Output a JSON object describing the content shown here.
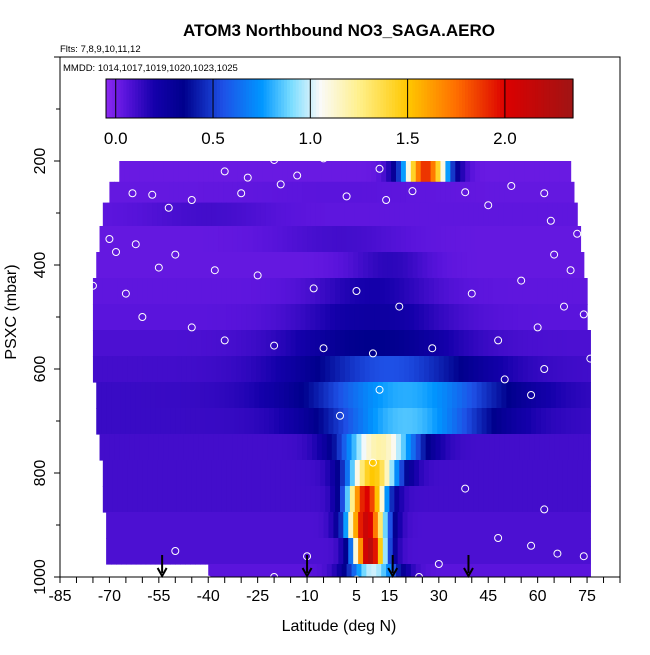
{
  "chart_data": {
    "type": "heatmap",
    "title": "ATOM3 Northbound NO3_SAGA.AERO",
    "flights_note": "Flts: 7,8,9,10,11,12",
    "mmdd_note": "MMDD: 1014,1017,1019,1020,1023,1025",
    "xlabel": "Latitude (deg N)",
    "ylabel": "PSXC (mbar)",
    "xlim": [
      -85,
      85
    ],
    "ylim": [
      1000,
      0
    ],
    "x_ticks": [
      "-85",
      "-70",
      "-55",
      "-40",
      "-25",
      "-10",
      "5",
      "15",
      "30",
      "45",
      "60",
      "75"
    ],
    "x_tick_values": [
      -85,
      -70,
      -55,
      -40,
      -25,
      -10,
      5,
      15,
      30,
      45,
      60,
      75
    ],
    "y_ticks": [
      "200",
      "400",
      "600",
      "800",
      "1000"
    ],
    "y_tick_values": [
      200,
      400,
      600,
      800,
      1000
    ],
    "colorbar": {
      "min": -0.05,
      "max": 2.35,
      "ticks": [
        "0.0",
        "0.5",
        "1.0",
        "1.5",
        "2.0"
      ],
      "tick_values": [
        0.0,
        0.5,
        1.0,
        1.5,
        2.0
      ]
    },
    "layers": [
      {
        "p": 220,
        "lat_min": -67,
        "lat_max": 70,
        "base": 0.02,
        "peaks": [
          {
            "lat": 26,
            "width": 7,
            "value": 1.9
          }
        ]
      },
      {
        "p": 260,
        "lat_min": -70,
        "lat_max": 71,
        "base": 0.03,
        "peaks": [
          {
            "lat": 0,
            "width": 30,
            "value": 0.05
          }
        ]
      },
      {
        "p": 300,
        "lat_min": -72,
        "lat_max": 72,
        "base": 0.04,
        "peaks": [
          {
            "lat": -40,
            "width": 20,
            "value": 0.1
          }
        ]
      },
      {
        "p": 350,
        "lat_min": -73,
        "lat_max": 73,
        "base": 0.03,
        "peaks": [
          {
            "lat": 0,
            "width": 20,
            "value": 0.1
          }
        ]
      },
      {
        "p": 400,
        "lat_min": -74,
        "lat_max": 74,
        "base": 0.03,
        "peaks": [
          {
            "lat": 15,
            "width": 12,
            "value": 0.15
          }
        ]
      },
      {
        "p": 450,
        "lat_min": -75,
        "lat_max": 75,
        "base": 0.04,
        "peaks": [
          {
            "lat": 10,
            "width": 18,
            "value": 0.2
          }
        ]
      },
      {
        "p": 500,
        "lat_min": -75,
        "lat_max": 75,
        "base": 0.05,
        "peaks": [
          {
            "lat": 10,
            "width": 22,
            "value": 0.25
          }
        ]
      },
      {
        "p": 550,
        "lat_min": -75,
        "lat_max": 76,
        "base": 0.08,
        "peaks": [
          {
            "lat": 10,
            "width": 25,
            "value": 0.35
          }
        ]
      },
      {
        "p": 600,
        "lat_min": -75,
        "lat_max": 76,
        "base": 0.1,
        "peaks": [
          {
            "lat": 15,
            "width": 28,
            "value": 0.55
          }
        ]
      },
      {
        "p": 650,
        "lat_min": -74,
        "lat_max": 76,
        "base": 0.12,
        "peaks": [
          {
            "lat": 20,
            "width": 30,
            "value": 0.8
          }
        ]
      },
      {
        "p": 700,
        "lat_min": -74,
        "lat_max": 76,
        "base": 0.12,
        "peaks": [
          {
            "lat": 20,
            "width": 25,
            "value": 0.85
          }
        ]
      },
      {
        "p": 750,
        "lat_min": -73,
        "lat_max": 76,
        "base": 0.1,
        "peaks": [
          {
            "lat": 12,
            "width": 12,
            "value": 1.2
          }
        ]
      },
      {
        "p": 800,
        "lat_min": -72,
        "lat_max": 76,
        "base": 0.1,
        "peaks": [
          {
            "lat": 10,
            "width": 8,
            "value": 1.5
          }
        ]
      },
      {
        "p": 850,
        "lat_min": -72,
        "lat_max": 76,
        "base": 0.1,
        "peaks": [
          {
            "lat": 8,
            "width": 6,
            "value": 2.0
          }
        ]
      },
      {
        "p": 900,
        "lat_min": -71,
        "lat_max": 76,
        "base": 0.08,
        "peaks": [
          {
            "lat": 8,
            "width": 6,
            "value": 2.1
          }
        ]
      },
      {
        "p": 950,
        "lat_min": -71,
        "lat_max": 76,
        "base": 0.08,
        "peaks": [
          {
            "lat": 9,
            "width": 5,
            "value": 2.2
          }
        ]
      },
      {
        "p": 1000,
        "lat_min": -40,
        "lat_max": 76,
        "base": 0.05,
        "peaks": [
          {
            "lat": 10,
            "width": 8,
            "value": 1.0
          }
        ]
      }
    ],
    "sample_points": [
      [
        -47,
        185
      ],
      [
        -35,
        220
      ],
      [
        -20,
        198
      ],
      [
        -5,
        195
      ],
      [
        12,
        215
      ],
      [
        -63,
        262
      ],
      [
        -57,
        265
      ],
      [
        -45,
        275
      ],
      [
        -30,
        262
      ],
      [
        -18,
        245
      ],
      [
        2,
        268
      ],
      [
        14,
        275
      ],
      [
        22,
        258
      ],
      [
        38,
        260
      ],
      [
        52,
        248
      ],
      [
        62,
        262
      ],
      [
        -80,
        325
      ],
      [
        -70,
        350
      ],
      [
        -62,
        360
      ],
      [
        -50,
        380
      ],
      [
        -38,
        410
      ],
      [
        -25,
        420
      ],
      [
        -8,
        445
      ],
      [
        5,
        450
      ],
      [
        18,
        480
      ],
      [
        40,
        455
      ],
      [
        55,
        430
      ],
      [
        65,
        380
      ],
      [
        72,
        340
      ],
      [
        -75,
        440
      ],
      [
        -60,
        500
      ],
      [
        -45,
        520
      ],
      [
        -35,
        545
      ],
      [
        -20,
        555
      ],
      [
        -5,
        560
      ],
      [
        10,
        570
      ],
      [
        28,
        560
      ],
      [
        48,
        545
      ],
      [
        60,
        520
      ],
      [
        68,
        480
      ],
      [
        74,
        495
      ],
      [
        -55,
        405
      ],
      [
        0,
        690
      ],
      [
        12,
        640
      ],
      [
        10,
        780
      ],
      [
        50,
        620
      ],
      [
        58,
        650
      ],
      [
        62,
        600
      ],
      [
        76,
        580
      ],
      [
        -75,
        945
      ],
      [
        -50,
        950
      ],
      [
        48,
        925
      ],
      [
        58,
        940
      ],
      [
        66,
        955
      ],
      [
        74,
        960
      ],
      [
        -40,
        1005
      ],
      [
        -20,
        1000
      ],
      [
        5,
        1005
      ],
      [
        24,
        1000
      ],
      [
        -10,
        960
      ],
      [
        30,
        975
      ],
      [
        62,
        870
      ],
      [
        38,
        830
      ],
      [
        -65,
        455
      ],
      [
        -68,
        375
      ],
      [
        -52,
        290
      ],
      [
        -28,
        232
      ],
      [
        -13,
        228
      ],
      [
        45,
        285
      ],
      [
        64,
        315
      ],
      [
        70,
        410
      ]
    ],
    "flight_markers_lat": [
      -54,
      -10,
      16,
      39
    ]
  }
}
